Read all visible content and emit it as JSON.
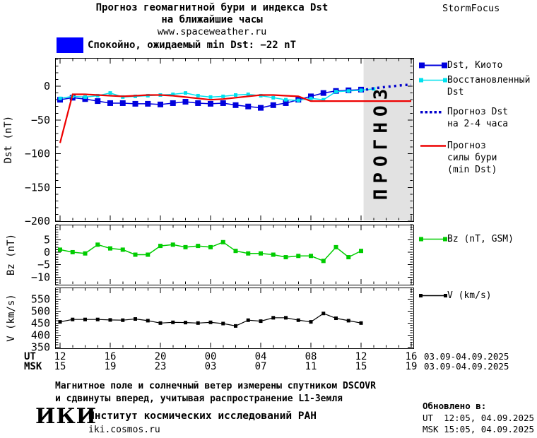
{
  "header": {
    "title_line1": "Прогноз геомагнитной бури и индекса Dst",
    "title_line2": "на ближайшие часы",
    "title_line3": "www.spaceweather.ru",
    "brand": "StormFocus"
  },
  "status": {
    "text": "Спокойно, ожидаемый min Dst: −22 nT",
    "swatch_color": "#0000ff"
  },
  "colors": {
    "dst_kyoto": "#0000dd",
    "dst_restored": "#00e1ee",
    "dst_forecast": "#0000cc",
    "storm_forecast": "#ee0000",
    "bz": "#00cc00",
    "v": "#000000",
    "forecast_region": "#e2e2e2",
    "forecast_watermark_text": "#c8c8c8"
  },
  "chart_data": [
    {
      "type": "line",
      "panel": "dst",
      "ylabel": "Dst (nT)",
      "ylim": [
        -200,
        42
      ],
      "yticks": [
        0,
        -50,
        -100,
        -150,
        -200
      ],
      "y_minor_step": 10,
      "xlim_hours": [
        0,
        28
      ],
      "forecast_region_start_hour": 24.2,
      "forecast_watermark": "ПРОГНОЗ",
      "series": [
        {
          "name": "Dst, Киото",
          "color": "#0000dd",
          "marker_size": 8,
          "line_width": 1.5,
          "x": [
            0,
            1,
            2,
            3,
            4,
            5,
            6,
            7,
            8,
            9,
            10,
            11,
            12,
            13,
            14,
            15,
            16,
            17,
            18,
            19,
            20,
            21,
            22,
            23,
            24
          ],
          "values": [
            -20,
            -17,
            -19,
            -22,
            -25,
            -25,
            -26,
            -26,
            -27,
            -25,
            -23,
            -25,
            -26,
            -25,
            -28,
            -30,
            -32,
            -28,
            -25,
            -20,
            -15,
            -10,
            -7,
            -6,
            -5
          ]
        },
        {
          "name": "Восстановленный Dst",
          "color": "#00e1ee",
          "marker_size": 5,
          "line_width": 1.5,
          "x": [
            0,
            1,
            2,
            3,
            4,
            5,
            6,
            7,
            8,
            9,
            10,
            11,
            12,
            13,
            14,
            15,
            16,
            17,
            18,
            19,
            20,
            21,
            22,
            23,
            24,
            25
          ],
          "values": [
            -18,
            -15,
            -16,
            -14,
            -10,
            -16,
            -15,
            -14,
            -13,
            -12,
            -10,
            -14,
            -16,
            -15,
            -13,
            -12,
            -14,
            -17,
            -20,
            -21,
            -18,
            -20,
            -8,
            -7,
            -6,
            -4
          ]
        },
        {
          "name": "Прогноз Dst на 2-4 часа",
          "color": "#0000cc",
          "style": "dotted",
          "line_width": 3.5,
          "x": [
            24.4,
            25,
            25.5,
            26,
            26.5,
            27,
            27.5,
            28
          ],
          "values": [
            -5,
            -3,
            -2,
            -1,
            0,
            1,
            2,
            2
          ]
        },
        {
          "name": "Прогноз силы бури (min Dst)",
          "color": "#ee0000",
          "line_width": 2.2,
          "x": [
            0,
            1,
            2,
            3,
            4,
            5,
            6,
            7,
            8,
            9,
            10,
            11,
            12,
            13,
            14,
            15,
            16,
            17,
            18,
            19,
            20,
            21,
            22,
            23,
            24,
            25,
            26,
            27,
            28
          ],
          "values": [
            -84,
            -12,
            -12,
            -13,
            -14,
            -15,
            -14,
            -13,
            -13,
            -14,
            -16,
            -18,
            -20,
            -19,
            -17,
            -15,
            -13,
            -13,
            -14,
            -15,
            -22,
            -22,
            -22,
            -22,
            -22,
            -22,
            -22,
            -22,
            -22
          ]
        }
      ]
    },
    {
      "type": "line",
      "panel": "bz",
      "ylabel": "Bz (nT)",
      "ylim": [
        -13,
        11
      ],
      "yticks": [
        5,
        0,
        -5,
        -10
      ],
      "y_minor_step": 1,
      "xlim_hours": [
        0,
        28
      ],
      "series": [
        {
          "name": "Bz (nT, GSM)",
          "color": "#00cc00",
          "marker_size": 6,
          "line_width": 1.5,
          "x": [
            0,
            1,
            2,
            3,
            4,
            5,
            6,
            7,
            8,
            9,
            10,
            11,
            12,
            13,
            14,
            15,
            16,
            17,
            18,
            19,
            20,
            21,
            22,
            23,
            24
          ],
          "values": [
            1,
            0,
            -0.5,
            3,
            1.5,
            1,
            -1,
            -1,
            2.5,
            3,
            2,
            2.5,
            2,
            4,
            0.5,
            -0.5,
            -0.5,
            -1,
            -2,
            -1.5,
            -1.5,
            -3.5,
            2,
            -2,
            0.5
          ]
        }
      ]
    },
    {
      "type": "line",
      "panel": "v",
      "ylabel": "V (km/s)",
      "ylim": [
        345,
        598
      ],
      "yticks": [
        550,
        500,
        450,
        400,
        350
      ],
      "y_minor_step": 10,
      "xlim_hours": [
        0,
        28
      ],
      "series": [
        {
          "name": "V (km/s)",
          "color": "#000000",
          "marker_size": 5,
          "line_width": 1.2,
          "x": [
            0,
            1,
            2,
            3,
            4,
            5,
            6,
            7,
            8,
            9,
            10,
            11,
            12,
            13,
            14,
            15,
            16,
            17,
            18,
            19,
            20,
            21,
            22,
            23,
            24
          ],
          "values": [
            455,
            465,
            465,
            465,
            463,
            462,
            467,
            460,
            450,
            453,
            452,
            450,
            453,
            448,
            438,
            462,
            458,
            472,
            472,
            462,
            455,
            490,
            470,
            460,
            450
          ]
        }
      ]
    }
  ],
  "legend": {
    "items": [
      {
        "lines": [
          "Dst, Киото"
        ],
        "color": "#0000dd",
        "style": "squares-line",
        "marker_size": 8
      },
      {
        "lines": [
          "Восстановленный",
          "Dst"
        ],
        "color": "#00e1ee",
        "style": "squares-line",
        "marker_size": 6
      },
      {
        "lines": [
          "Прогноз Dst",
          "на 2-4 часа"
        ],
        "color": "#0000cc",
        "style": "dotted",
        "marker_size": 4
      },
      {
        "lines": [
          "Прогноз",
          "силы бури",
          "(min Dst)"
        ],
        "color": "#ee0000",
        "style": "line",
        "marker_size": 0
      },
      {
        "lines": [
          "Bz (nT, GSM)"
        ],
        "color": "#00cc00",
        "style": "squares-line",
        "marker_size": 6
      },
      {
        "lines": [
          "V (km/s)"
        ],
        "color": "#000000",
        "style": "squares-line",
        "marker_size": 5
      }
    ]
  },
  "x_axis": {
    "ut_label": "UT",
    "msk_label": "MSK",
    "ticks": [
      {
        "hour": 0,
        "ut": "12",
        "msk": "15"
      },
      {
        "hour": 4,
        "ut": "16",
        "msk": "19"
      },
      {
        "hour": 8,
        "ut": "20",
        "msk": "23"
      },
      {
        "hour": 12,
        "ut": "00",
        "msk": "03"
      },
      {
        "hour": 16,
        "ut": "04",
        "msk": "07"
      },
      {
        "hour": 20,
        "ut": "08",
        "msk": "11"
      },
      {
        "hour": 24,
        "ut": "12",
        "msk": "15"
      },
      {
        "hour": 28,
        "ut": "16",
        "msk": "19"
      }
    ],
    "date_range": "03.09-04.09.2025"
  },
  "footer": {
    "note_line1": "Магнитное поле и солнечный ветер измерены спутником DSCOVR",
    "note_line2": "и сдвинуты вперед, учитывая распространение L1-Земля",
    "logo": "ИКИ",
    "institute": "Институт космических исследований РАН",
    "site": "iki.cosmos.ru",
    "updated_label": "Обновлено в:",
    "updated_ut": "UT  12:05, 04.09.2025",
    "updated_msk": "MSK 15:05, 04.09.2025"
  }
}
